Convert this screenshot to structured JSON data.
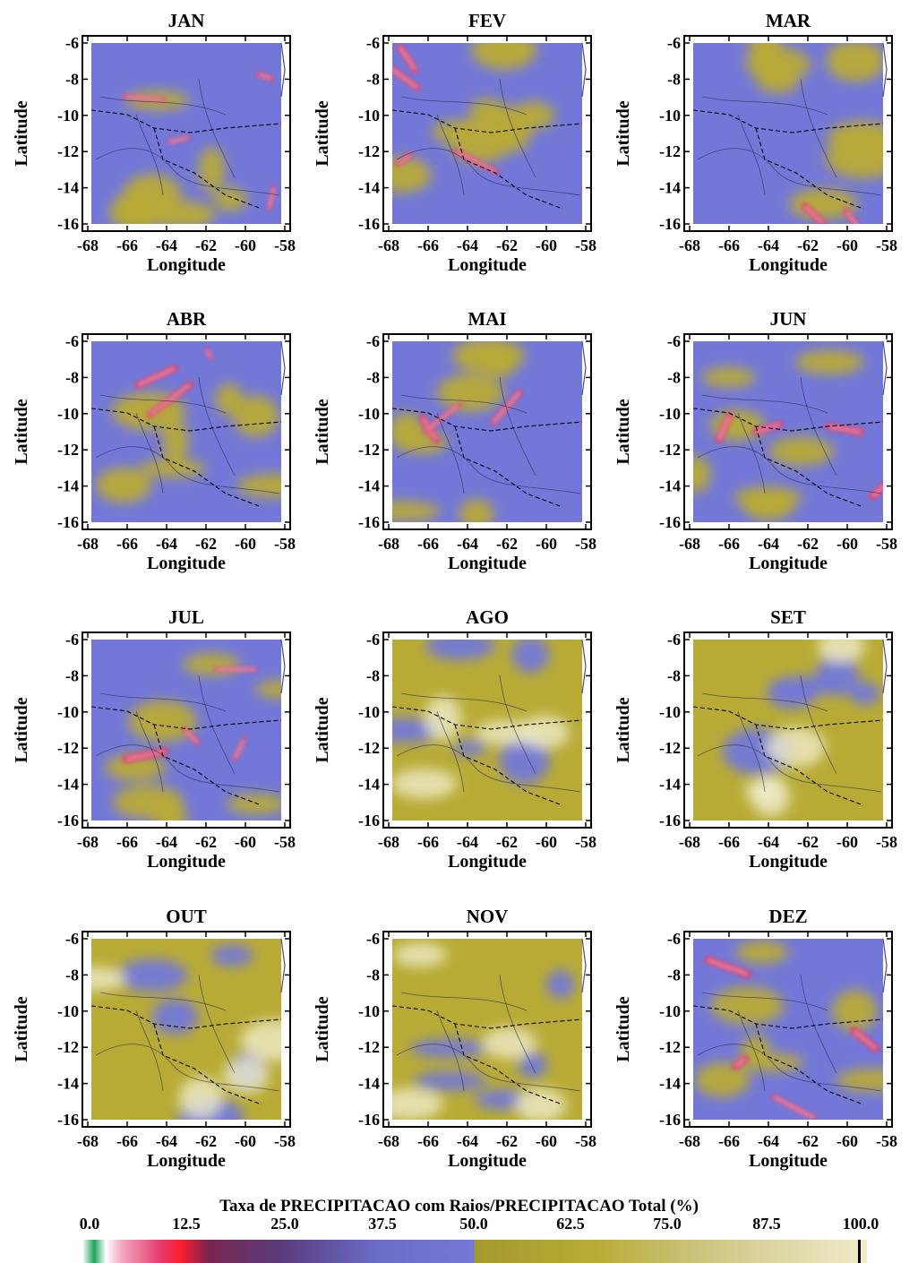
{
  "figure": {
    "panels": [
      {
        "title": "JAN"
      },
      {
        "title": "FEV"
      },
      {
        "title": "MAR"
      },
      {
        "title": "ABR"
      },
      {
        "title": "MAI"
      },
      {
        "title": "JUN"
      },
      {
        "title": "JUL"
      },
      {
        "title": "AGO"
      },
      {
        "title": "SET"
      },
      {
        "title": "OUT"
      },
      {
        "title": "NOV"
      },
      {
        "title": "DEZ"
      }
    ],
    "x_axis": {
      "label": "Longitude",
      "ticks": [
        "-68",
        "-66",
        "-64",
        "-62",
        "-60",
        "-58"
      ]
    },
    "y_axis": {
      "label": "Latitude",
      "ticks": [
        "-6",
        "-8",
        "-10",
        "-12",
        "-14",
        "-16"
      ]
    }
  },
  "legend": {
    "title": "Taxa de PRECIPITACAO com Raios/PRECIPITACAO Total (%)",
    "labels": [
      "0.0",
      "12.5",
      "25.0",
      "37.5",
      "50.0",
      "62.5",
      "75.0",
      "87.5",
      "100.0"
    ],
    "colors": {
      "zero": "#1fa35a",
      "low": "#e33a6a",
      "mid": "#7378d8",
      "high": "#b8ab35",
      "top": "#efeccb"
    }
  },
  "month_dominance": {
    "blue_dominant": [
      "JAN",
      "FEV",
      "MAR",
      "ABR",
      "MAI",
      "JUN",
      "JUL",
      "DEZ"
    ],
    "yellow_dominant": [
      "AGO",
      "SET",
      "OUT",
      "NOV"
    ]
  }
}
